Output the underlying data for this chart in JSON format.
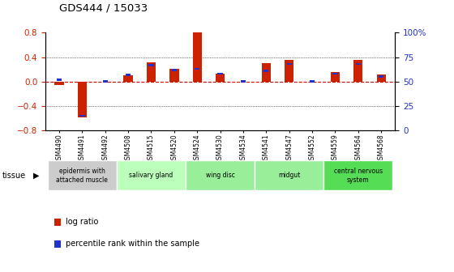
{
  "title": "GDS444 / 15033",
  "samples": [
    "GSM4490",
    "GSM4491",
    "GSM4492",
    "GSM4508",
    "GSM4515",
    "GSM4520",
    "GSM4524",
    "GSM4530",
    "GSM4534",
    "GSM4541",
    "GSM4547",
    "GSM4552",
    "GSM4559",
    "GSM4564",
    "GSM4568"
  ],
  "log_ratio": [
    -0.05,
    -0.58,
    0.0,
    0.1,
    0.32,
    0.21,
    0.8,
    0.13,
    0.0,
    0.3,
    0.35,
    0.0,
    0.16,
    0.35,
    0.12
  ],
  "percentile": [
    52,
    15,
    50,
    57,
    67,
    62,
    63,
    58,
    50,
    61,
    68,
    50,
    58,
    68,
    55
  ],
  "ylim_left": [
    -0.8,
    0.8
  ],
  "ylim_right": [
    0,
    100
  ],
  "yticks_left": [
    -0.8,
    -0.4,
    0.0,
    0.4,
    0.8
  ],
  "yticks_right": [
    0,
    25,
    50,
    75,
    100
  ],
  "ytick_labels_right": [
    "0",
    "25",
    "50",
    "75",
    "100%"
  ],
  "bar_color_red": "#cc2200",
  "bar_color_blue": "#2233cc",
  "zero_line_color": "#cc0000",
  "background_color": "#ffffff",
  "tissue_groups": [
    {
      "label": "epidermis with\nattached muscle",
      "start": 0,
      "end": 2,
      "color": "#cccccc"
    },
    {
      "label": "salivary gland",
      "start": 3,
      "end": 5,
      "color": "#bbffbb"
    },
    {
      "label": "wing disc",
      "start": 6,
      "end": 8,
      "color": "#99ee99"
    },
    {
      "label": "midgut",
      "start": 9,
      "end": 11,
      "color": "#99ee99"
    },
    {
      "label": "central nervous\nsystem",
      "start": 12,
      "end": 14,
      "color": "#55dd55"
    }
  ],
  "legend_label_red": "log ratio",
  "legend_label_blue": "percentile rank within the sample",
  "tissue_label": "tissue",
  "bar_width": 0.4
}
